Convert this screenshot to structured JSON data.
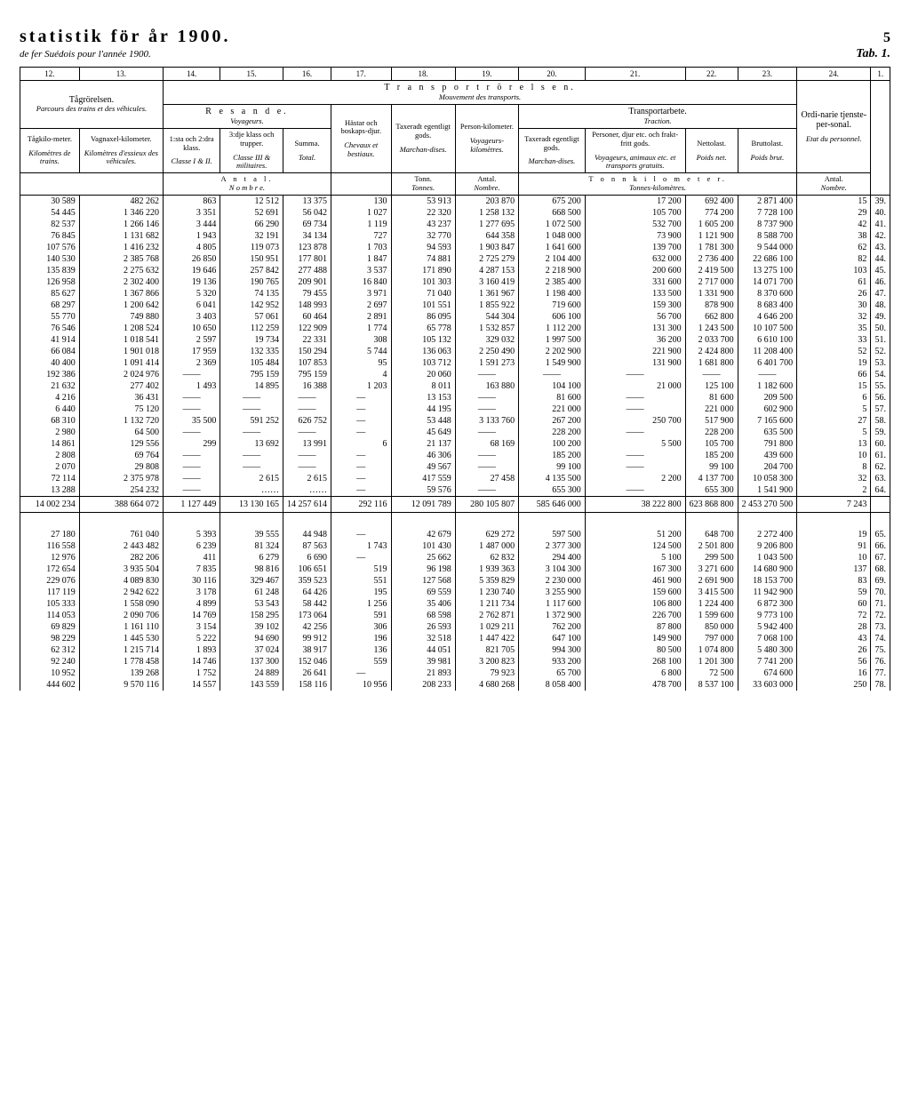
{
  "header": {
    "title": "statistik för år 1900.",
    "subtitle": "de fer Suédois pour l'année 1900.",
    "page_number": "5",
    "tab_label": "Tab. 1."
  },
  "col_numbers": [
    "12.",
    "13.",
    "14.",
    "15.",
    "16.",
    "17.",
    "18.",
    "19.",
    "20.",
    "21.",
    "22.",
    "23.",
    "24.",
    "1."
  ],
  "thead": {
    "tagror": "Tågrörelsen.",
    "tagror_sub": "Parcours des trains et des véhicules.",
    "transport_title": "T r a n s p o r t r ö r e l s e n.",
    "transport_sub": "Mouvement des transports.",
    "resande": "R e s a n d e.",
    "resande_sub": "Voyageurs.",
    "transportarbete": "Transportarbete.",
    "transportarbete_sub": "Traction.",
    "ordi": "Ordi-narie tjenste-per-sonal.",
    "tagkilo": "Tågkilo-meter.",
    "tagkilo_sub": "Kilomètres de trains.",
    "vagn": "Vagnaxel-kilometer.",
    "vagn_sub": "Kilomètres d'essieux des véhicules.",
    "klass1": "1:sta och 2:dra klass.",
    "klass1_sub": "Classe I & II.",
    "klass3": "3:dje klass och trupper.",
    "klass3_sub": "Classe III & militaires.",
    "summa": "Summa.",
    "summa_sub": "Total.",
    "hastar": "Hästar och boskaps-djur.",
    "hastar_sub": "Chevaux et bestiaux.",
    "taxeradt_g": "Taxeradt egentligt gods.",
    "taxeradt_g_sub": "Marchan-dises.",
    "person_km": "Person-kilometer.",
    "person_km_sub": "Voyageurs-kilomètres.",
    "tax_eg_gods": "Taxeradt egentligt gods.",
    "tax_eg_gods_sub": "Marchan-dises.",
    "personer": "Personer, djur etc. och frakt-fritt gods.",
    "personer_sub": "Voyageurs, animaux etc. et transports gratuits.",
    "nettolast": "Nettolast.",
    "nettolast_sub": "Poids net.",
    "bruttolast": "Bruttolast.",
    "bruttolast_sub": "Poids brut.",
    "etat": "Etat du personnel.",
    "antal": "A n t a l.",
    "nombre": "N o m b r e.",
    "tonn": "Tonn.",
    "tonnes": "Tonnes.",
    "antal2": "Antal.",
    "nombre2": "Nombre.",
    "tonnkm": "T o n n k i l o m e t e r.",
    "tonnkm_sub": "Tonnes-kilomètres.",
    "antal3": "Antal.",
    "nombre3": "Nombre."
  },
  "rows1": [
    [
      "30 589",
      "482 262",
      "863",
      "12 512",
      "13 375",
      "130",
      "53 913",
      "203 870",
      "675 200",
      "17 200",
      "692 400",
      "2 871 400",
      "15",
      "39."
    ],
    [
      "54 445",
      "1 346 220",
      "3 351",
      "52 691",
      "56 042",
      "1 027",
      "22 320",
      "1 258 132",
      "668 500",
      "105 700",
      "774 200",
      "7 728 100",
      "29",
      "40."
    ],
    [
      "82 537",
      "1 266 146",
      "3 444",
      "66 290",
      "69 734",
      "1 119",
      "43 237",
      "1 277 695",
      "1 072 500",
      "532 700",
      "1 605 200",
      "8 737 900",
      "42",
      "41."
    ],
    [
      "76 845",
      "1 131 682",
      "1 943",
      "32 191",
      "34 134",
      "727",
      "32 770",
      "644 358",
      "1 048 000",
      "73 900",
      "1 121 900",
      "8 588 700",
      "38",
      "42."
    ],
    [
      "107 576",
      "1 416 232",
      "4 805",
      "119 073",
      "123 878",
      "1 703",
      "94 593",
      "1 903 847",
      "1 641 600",
      "139 700",
      "1 781 300",
      "9 544 000",
      "62",
      "43."
    ],
    [
      "140 530",
      "2 385 768",
      "26 850",
      "150 951",
      "177 801",
      "1 847",
      "74 881",
      "2 725 279",
      "2 104 400",
      "632 000",
      "2 736 400",
      "22 686 100",
      "82",
      "44."
    ],
    [
      "135 839",
      "2 275 632",
      "19 646",
      "257 842",
      "277 488",
      "3 537",
      "171 890",
      "4 287 153",
      "2 218 900",
      "200 600",
      "2 419 500",
      "13 275 100",
      "103",
      "45."
    ],
    [
      "126 958",
      "2 302 400",
      "19 136",
      "190 765",
      "209 901",
      "16 840",
      "101 303",
      "3 160 419",
      "2 385 400",
      "331 600",
      "2 717 000",
      "14 071 700",
      "61",
      "46."
    ],
    [
      "85 627",
      "1 367 866",
      "5 320",
      "74 135",
      "79 455",
      "3 971",
      "71 040",
      "1 361 967",
      "1 198 400",
      "133 500",
      "1 331 900",
      "8 370 600",
      "26",
      "47."
    ],
    [
      "68 297",
      "1 200 642",
      "6 041",
      "142 952",
      "148 993",
      "2 697",
      "101 551",
      "1 855 922",
      "719 600",
      "159 300",
      "878 900",
      "8 683 400",
      "30",
      "48."
    ],
    [
      "55 770",
      "749 880",
      "3 403",
      "57 061",
      "60 464",
      "2 891",
      "86 095",
      "544 304",
      "606 100",
      "56 700",
      "662 800",
      "4 646 200",
      "32",
      "49."
    ],
    [
      "76 546",
      "1 208 524",
      "10 650",
      "112 259",
      "122 909",
      "1 774",
      "65 778",
      "1 532 857",
      "1 112 200",
      "131 300",
      "1 243 500",
      "10 107 500",
      "35",
      "50."
    ],
    [
      "41 914",
      "1 018 541",
      "2 597",
      "19 734",
      "22 331",
      "308",
      "105 132",
      "329 032",
      "1 997 500",
      "36 200",
      "2 033 700",
      "6 610 100",
      "33",
      "51."
    ],
    [
      "66 084",
      "1 901 018",
      "17 959",
      "132 335",
      "150 294",
      "5 744",
      "136 063",
      "2 250 490",
      "2 202 900",
      "221 900",
      "2 424 800",
      "11 208 400",
      "52",
      "52."
    ],
    [
      "40 400",
      "1 091 414",
      "2 369",
      "105 484",
      "107 853",
      "95",
      "103 712",
      "1 591 273",
      "1 549 900",
      "131 900",
      "1 681 800",
      "6 401 700",
      "19",
      "53."
    ],
    [
      "192 386",
      "2 024 976",
      "——",
      "795 159",
      "795 159",
      "4",
      "20 060",
      "——",
      "——",
      "——",
      "——",
      "——",
      "66",
      "54."
    ],
    [
      "21 632",
      "277 402",
      "1 493",
      "14 895",
      "16 388",
      "1 203",
      "8 011",
      "163 880",
      "104 100",
      "21 000",
      "125 100",
      "1 182 600",
      "15",
      "55."
    ],
    [
      "4 216",
      "36 431",
      "——",
      "——",
      "——",
      "—",
      "13 153",
      "——",
      "81 600",
      "——",
      "81 600",
      "209 500",
      "6",
      "56."
    ],
    [
      "6 440",
      "75 120",
      "——",
      "——",
      "——",
      "—",
      "44 195",
      "——",
      "221 000",
      "——",
      "221 000",
      "602 900",
      "5",
      "57."
    ],
    [
      "68 310",
      "1 132 720",
      "35 500",
      "591 252",
      "626 752",
      "—",
      "53 448",
      "3 133 760",
      "267 200",
      "250 700",
      "517 900",
      "7 165 600",
      "27",
      "58."
    ],
    [
      "2 980",
      "64 500",
      "——",
      "——",
      "——",
      "—",
      "45 649",
      "——",
      "228 200",
      "——",
      "228 200",
      "635 500",
      "5",
      "59."
    ],
    [
      "14 861",
      "129 556",
      "299",
      "13 692",
      "13 991",
      "6",
      "21 137",
      "68 169",
      "100 200",
      "5 500",
      "105 700",
      "791 800",
      "13",
      "60."
    ],
    [
      "2 808",
      "69 764",
      "——",
      "——",
      "——",
      "—",
      "46 306",
      "——",
      "185 200",
      "——",
      "185 200",
      "439 600",
      "10",
      "61."
    ],
    [
      "2 070",
      "29 808",
      "——",
      "——",
      "——",
      "—",
      "49 567",
      "——",
      "99 100",
      "——",
      "99 100",
      "204 700",
      "8",
      "62."
    ],
    [
      "72 114",
      "2 375 978",
      "——",
      "2 615",
      "2 615",
      "—",
      "417 559",
      "27 458",
      "4 135 500",
      "2 200",
      "4 137 700",
      "10 058 300",
      "32",
      "63."
    ],
    [
      "13 288",
      "254 232",
      "——",
      "……",
      "……",
      "—",
      "59 576",
      "——",
      "655 300",
      "——",
      "655 300",
      "1 541 900",
      "2",
      "64."
    ]
  ],
  "sum1": [
    "14 002 234",
    "388 664 072",
    "1 127 449",
    "13 130 165",
    "14 257 614",
    "292 116",
    "12 091 789",
    "280 105 807",
    "585 646 000",
    "38 222 800",
    "623 868 800",
    "2 453 270 500",
    "7 243",
    ""
  ],
  "rows2": [
    [
      "27 180",
      "761 040",
      "5 393",
      "39 555",
      "44 948",
      "—",
      "42 679",
      "629 272",
      "597 500",
      "51 200",
      "648 700",
      "2 272 400",
      "19",
      "65."
    ],
    [
      "116 558",
      "2 443 482",
      "6 239",
      "81 324",
      "87 563",
      "1 743",
      "101 430",
      "1 487 000",
      "2 377 300",
      "124 500",
      "2 501 800",
      "9 206 800",
      "91",
      "66."
    ],
    [
      "12 976",
      "282 206",
      "411",
      "6 279",
      "6 690",
      "—",
      "25 662",
      "62 832",
      "294 400",
      "5 100",
      "299 500",
      "1 043 500",
      "10",
      "67."
    ],
    [
      "172 654",
      "3 935 504",
      "7 835",
      "98 816",
      "106 651",
      "519",
      "96 198",
      "1 939 363",
      "3 104 300",
      "167 300",
      "3 271 600",
      "14 680 900",
      "137",
      "68."
    ],
    [
      "229 076",
      "4 089 830",
      "30 116",
      "329 467",
      "359 523",
      "551",
      "127 568",
      "5 359 829",
      "2 230 000",
      "461 900",
      "2 691 900",
      "18 153 700",
      "83",
      "69."
    ],
    [
      "117 119",
      "2 942 622",
      "3 178",
      "61 248",
      "64 426",
      "195",
      "69 559",
      "1 230 740",
      "3 255 900",
      "159 600",
      "3 415 500",
      "11 942 900",
      "59",
      "70."
    ],
    [
      "105 333",
      "1 558 090",
      "4 899",
      "53 543",
      "58 442",
      "1 256",
      "35 406",
      "1 211 734",
      "1 117 600",
      "106 800",
      "1 224 400",
      "6 872 300",
      "60",
      "71."
    ],
    [
      "114 053",
      "2 090 706",
      "14 769",
      "158 295",
      "173 064",
      "591",
      "68 598",
      "2 762 871",
      "1 372 900",
      "226 700",
      "1 599 600",
      "9 773 100",
      "72",
      "72."
    ],
    [
      "69 829",
      "1 161 110",
      "3 154",
      "39 102",
      "42 256",
      "306",
      "26 593",
      "1 029 211",
      "762 200",
      "87 800",
      "850 000",
      "5 942 400",
      "28",
      "73."
    ],
    [
      "98 229",
      "1 445 530",
      "5 222",
      "94 690",
      "99 912",
      "196",
      "32 518",
      "1 447 422",
      "647 100",
      "149 900",
      "797 000",
      "7 068 100",
      "43",
      "74."
    ],
    [
      "62 312",
      "1 215 714",
      "1 893",
      "37 024",
      "38 917",
      "136",
      "44 051",
      "821 705",
      "994 300",
      "80 500",
      "1 074 800",
      "5 480 300",
      "26",
      "75."
    ],
    [
      "92 240",
      "1 778 458",
      "14 746",
      "137 300",
      "152 046",
      "559",
      "39 981",
      "3 200 823",
      "933 200",
      "268 100",
      "1 201 300",
      "7 741 200",
      "56",
      "76."
    ],
    [
      "10 952",
      "139 268",
      "1 752",
      "24 889",
      "26 641",
      "—",
      "21 893",
      "79 923",
      "65 700",
      "6 800",
      "72 500",
      "674 600",
      "16",
      "77."
    ],
    [
      "444 602",
      "9 570 116",
      "14 557",
      "143 559",
      "158 116",
      "10 956",
      "208 233",
      "4 680 268",
      "8 058 400",
      "478 700",
      "8 537 100",
      "33 603 000",
      "250",
      "78."
    ]
  ]
}
